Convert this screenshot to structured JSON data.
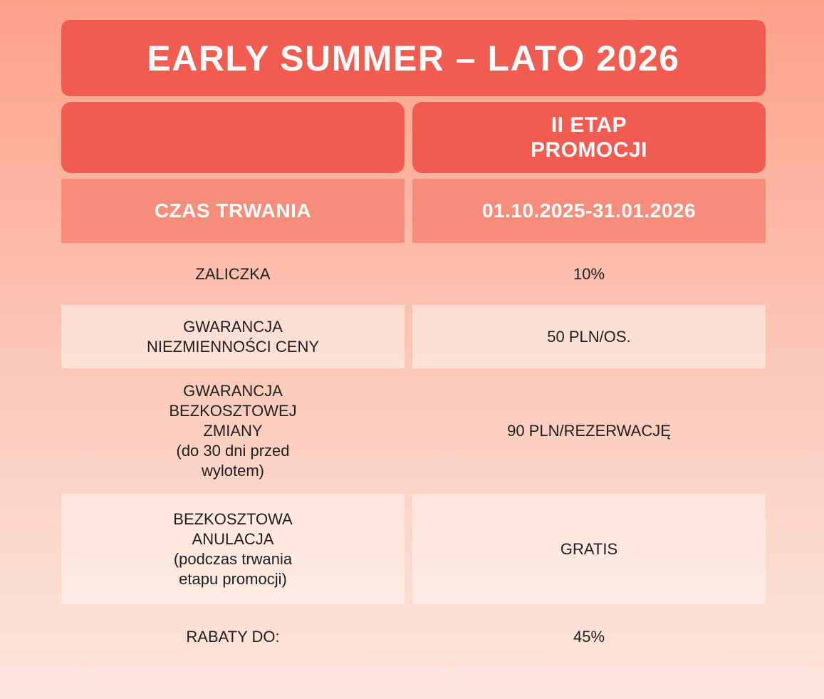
{
  "title": "EARLY SUMMER – LATO 2026",
  "stage_header": "II ETAP\nPROMOCJI",
  "rows": [
    {
      "label": "CZAS TRWANIA",
      "value": "01.10.2025-31.01.2026"
    },
    {
      "label": "ZALICZKA",
      "value": "10%"
    },
    {
      "label": "GWARANCJA\nNIEZMIENNOŚCI CENY",
      "value": "50 PLN/OS."
    },
    {
      "label": "GWARANCJA\nBEZKOSZTOWEJ\nZMIANY\n(do 30 dni przed\nwylotem)",
      "value": "90 PLN/REZERWACJĘ"
    },
    {
      "label": "BEZKOSZTOWA\nANULACJA\n(podczas trwania\netapu promocji)",
      "value": "GRATIS"
    },
    {
      "label": "RABATY DO:",
      "value": "45%"
    }
  ],
  "colors": {
    "accent_red": "#F25B50",
    "salmon": "#F68D7B",
    "light_pink_cell": "#FCDCD2",
    "background_top": "#FFA189",
    "background_bottom": "#FEE5DC",
    "text_dark": "#1E1E1E",
    "text_light": "#FFFFFF"
  }
}
